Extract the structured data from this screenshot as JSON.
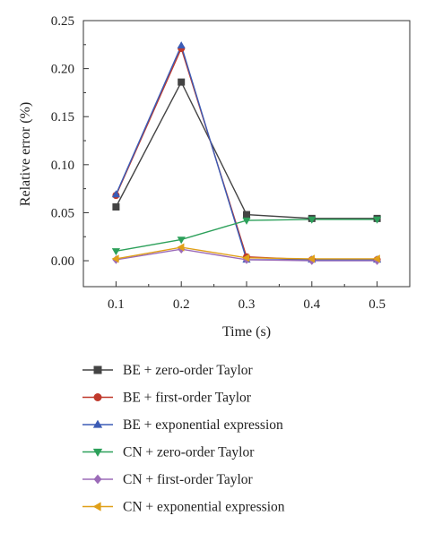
{
  "chart_data": {
    "type": "line",
    "xlabel": "Time (s)",
    "ylabel": "Relative error (%)",
    "x": [
      0.1,
      0.2,
      0.3,
      0.4,
      0.5
    ],
    "xticks": [
      "0.1",
      "0.2",
      "0.3",
      "0.4",
      "0.5"
    ],
    "yticks": [
      "0.00",
      "0.05",
      "0.10",
      "0.15",
      "0.20",
      "0.25"
    ],
    "xlim": [
      0.05,
      0.55
    ],
    "ylim": [
      -0.027,
      0.25
    ],
    "grid": false,
    "legend_position": "below",
    "series": [
      {
        "name": "BE + zero-order Taylor",
        "color": "#444444",
        "marker": "square",
        "values": [
          0.056,
          0.186,
          0.048,
          0.044,
          0.044
        ]
      },
      {
        "name": "BE + first-order Taylor",
        "color": "#c0392b",
        "marker": "circle",
        "values": [
          0.068,
          0.221,
          0.004,
          0.001,
          0.001
        ]
      },
      {
        "name": "BE + exponential expression",
        "color": "#3b5bb5",
        "marker": "triangle-up",
        "values": [
          0.069,
          0.224,
          0.001,
          0.001,
          0.001
        ]
      },
      {
        "name": "CN + zero-order Taylor",
        "color": "#2ca05a",
        "marker": "triangle-down",
        "values": [
          0.01,
          0.022,
          0.042,
          0.043,
          0.043
        ]
      },
      {
        "name": "CN + first-order Taylor",
        "color": "#9b6bb8",
        "marker": "diamond",
        "values": [
          0.001,
          0.012,
          0.001,
          0.0,
          0.0
        ]
      },
      {
        "name": "CN + exponential expression",
        "color": "#e0a019",
        "marker": "triangle-left",
        "values": [
          0.002,
          0.014,
          0.003,
          0.002,
          0.002
        ]
      }
    ]
  }
}
